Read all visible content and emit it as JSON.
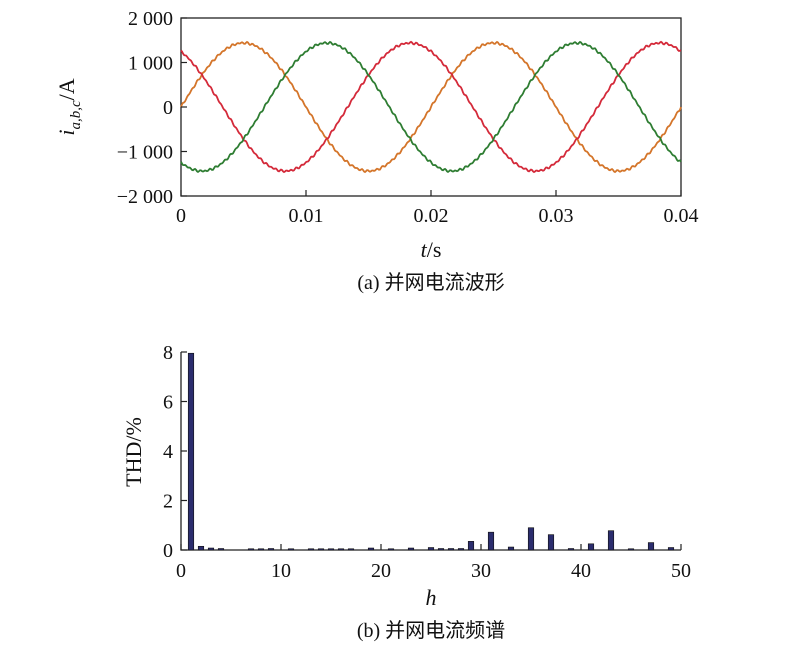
{
  "chart_data": [
    {
      "type": "line",
      "caption": "(a) 并网电流波形",
      "ylabel": "i_{a,b,c}/A",
      "ylabel_parts": {
        "main": "i",
        "sub": "a,b,c",
        "unit": "/A"
      },
      "xlabel_parts": {
        "main": "t",
        "unit": "/s"
      },
      "xlim": [
        0,
        0.04
      ],
      "ylim": [
        -2000,
        2000
      ],
      "x_ticks": [
        0,
        0.01,
        0.02,
        0.03,
        0.04
      ],
      "x_tick_labels": [
        "0",
        "0.01",
        "0.02",
        "0.03",
        "0.04"
      ],
      "y_ticks": [
        2000,
        1000,
        0,
        -1000,
        -2000
      ],
      "y_tick_labels": [
        "2 000",
        "1 000",
        "0",
        "−1 000",
        "−2 000"
      ],
      "grid": false,
      "series": [
        {
          "color": "#d4752a",
          "amplitude": 1440,
          "frequency_hz": 50,
          "phase_deg": 0
        },
        {
          "color": "#d42a3a",
          "amplitude": 1440,
          "frequency_hz": 50,
          "phase_deg": 120
        },
        {
          "color": "#2e7d32",
          "amplitude": 1440,
          "frequency_hz": 50,
          "phase_deg": -120
        }
      ]
    },
    {
      "type": "bar",
      "caption": "(b) 并网电流频谱",
      "xlabel": "h",
      "ylabel": "THD/%",
      "xlim": [
        0,
        50
      ],
      "ylim": [
        0,
        8
      ],
      "x_ticks": [
        0,
        10,
        20,
        30,
        40,
        50
      ],
      "x_tick_labels": [
        "0",
        "10",
        "20",
        "30",
        "40",
        "50"
      ],
      "y_ticks": [
        0,
        2,
        4,
        6,
        8
      ],
      "y_tick_labels": [
        "0",
        "2",
        "4",
        "6",
        "8"
      ],
      "bar_color": "#2b2d6e",
      "harmonics": [
        1,
        2,
        3,
        4,
        7,
        8,
        9,
        11,
        13,
        14,
        15,
        16,
        17,
        19,
        21,
        23,
        25,
        26,
        27,
        28,
        29,
        31,
        33,
        35,
        37,
        39,
        41,
        43,
        45,
        47,
        49
      ],
      "values": [
        7.95,
        0.15,
        0.08,
        0.06,
        0.05,
        0.05,
        0.06,
        0.05,
        0.05,
        0.05,
        0.05,
        0.05,
        0.05,
        0.08,
        0.05,
        0.08,
        0.1,
        0.06,
        0.06,
        0.06,
        0.35,
        0.72,
        0.12,
        0.9,
        0.62,
        0.06,
        0.25,
        0.78,
        0.05,
        0.3,
        0.1
      ]
    }
  ]
}
